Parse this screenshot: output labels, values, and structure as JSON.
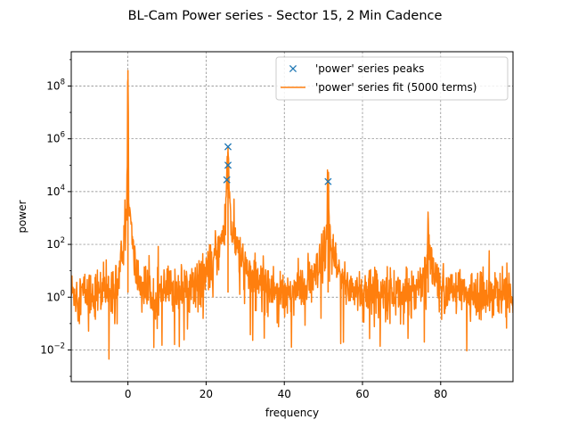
{
  "chart_data": {
    "type": "line",
    "title": "BL-Cam Power series - Sector 15, 2 Min Cadence",
    "xlabel": "frequency",
    "ylabel": "power",
    "xlim": [
      -14.5,
      98.5
    ],
    "ylim_log10": [
      -3.2,
      9.3
    ],
    "y_scale": "log",
    "grid": true,
    "legend_position": "top-right",
    "x_ticks": [
      {
        "value": 0,
        "label": "0"
      },
      {
        "value": 20,
        "label": "20"
      },
      {
        "value": 40,
        "label": "40"
      },
      {
        "value": 60,
        "label": "60"
      },
      {
        "value": 80,
        "label": "80"
      }
    ],
    "y_ticks": [
      {
        "exp": -2,
        "base": "10",
        "sup": "−2"
      },
      {
        "exp": 0,
        "base": "10",
        "sup": "0"
      },
      {
        "exp": 2,
        "base": "10",
        "sup": "2"
      },
      {
        "exp": 4,
        "base": "10",
        "sup": "4"
      },
      {
        "exp": 6,
        "base": "10",
        "sup": "6"
      },
      {
        "exp": 8,
        "base": "10",
        "sup": "8"
      }
    ],
    "series": [
      {
        "name": "'power' series peaks",
        "type": "scatter",
        "marker": "x",
        "color": "#1f77b4",
        "points": [
          {
            "x": 25.6,
            "y": 500000
          },
          {
            "x": 25.6,
            "y": 100000
          },
          {
            "x": 25.3,
            "y": 28000
          },
          {
            "x": 51.2,
            "y": 24000
          }
        ]
      },
      {
        "name": "'power' series fit (5000 terms)",
        "type": "line",
        "color": "#ff7f0e",
        "noise_floor": 1.5,
        "peaks": [
          {
            "x": 0.0,
            "y": 400000000,
            "width": 0.15
          },
          {
            "x": 25.6,
            "y": 500000,
            "width": 0.5
          },
          {
            "x": 51.2,
            "y": 24000,
            "width": 0.3
          },
          {
            "x": 76.8,
            "y": 1000,
            "width": 0.2
          }
        ]
      }
    ]
  }
}
